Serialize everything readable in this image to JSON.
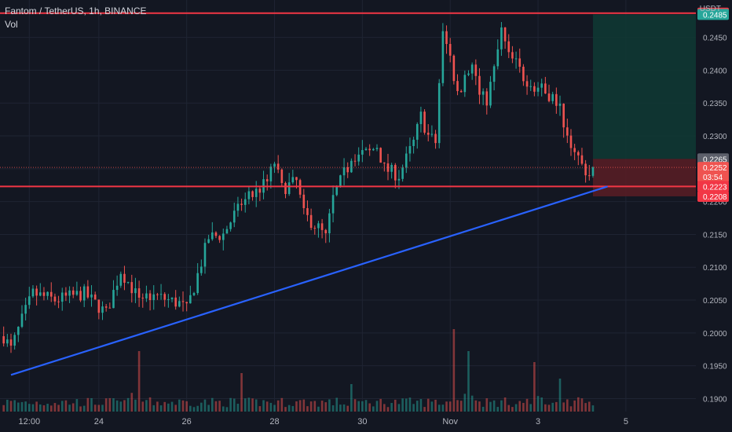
{
  "header": {
    "title": "Fantom / TetherUS, 1h, BINANCE",
    "volume_label": "Vol",
    "currency": "USDT"
  },
  "colors": {
    "background": "#131722",
    "grid": "#1f2433",
    "up": "#26a69a",
    "down": "#ef5350",
    "resistance_line": "#f23645",
    "trendline": "#2962ff",
    "target_zone": "#0f3a34",
    "stop_zone": "#5a1d24",
    "axis_text": "#b2b5be"
  },
  "chart_data": {
    "type": "candlestick",
    "symbol": "Fantom / TetherUS",
    "interval": "1h",
    "exchange": "BINANCE",
    "y_axis": {
      "ticks": [
        "0.1900",
        "0.1950",
        "0.2000",
        "0.2050",
        "0.2100",
        "0.2150",
        "0.2200",
        "0.2250",
        "0.2300",
        "0.2350",
        "0.2400",
        "0.2450"
      ],
      "range": [
        0.1885,
        0.2495
      ]
    },
    "x_axis": {
      "ticks": [
        "12:00",
        "24",
        "26",
        "28",
        "30",
        "Nov",
        "3",
        "5"
      ],
      "tick_time": [
        5,
        24,
        48,
        72,
        96,
        120,
        144,
        168
      ]
    },
    "price_labels": {
      "resistance": "0.2487",
      "target": "0.2485",
      "last_close": "0.2265",
      "current": "0.2252",
      "countdown": "03:54",
      "support": "0.2223",
      "stop": "0.2208"
    },
    "key_points": [
      [
        -2,
        0.1995
      ],
      [
        0,
        0.1975
      ],
      [
        3,
        0.202
      ],
      [
        6,
        0.206
      ],
      [
        12,
        0.205
      ],
      [
        20,
        0.206
      ],
      [
        26,
        0.203
      ],
      [
        30,
        0.2095
      ],
      [
        34,
        0.206
      ],
      [
        40,
        0.2055
      ],
      [
        46,
        0.2045
      ],
      [
        48,
        0.2035
      ],
      [
        50,
        0.207
      ],
      [
        54,
        0.2145
      ],
      [
        58,
        0.215
      ],
      [
        62,
        0.219
      ],
      [
        66,
        0.221
      ],
      [
        70,
        0.223
      ],
      [
        72,
        0.226
      ],
      [
        74,
        0.222
      ],
      [
        78,
        0.223
      ],
      [
        80,
        0.218
      ],
      [
        84,
        0.216
      ],
      [
        86,
        0.2145
      ],
      [
        88,
        0.2205
      ],
      [
        92,
        0.2255
      ],
      [
        94,
        0.227
      ],
      [
        98,
        0.2275
      ],
      [
        100,
        0.2285
      ],
      [
        102,
        0.225
      ],
      [
        106,
        0.224
      ],
      [
        110,
        0.229
      ],
      [
        112,
        0.233
      ],
      [
        114,
        0.23
      ],
      [
        116,
        0.229
      ],
      [
        117,
        0.238
      ],
      [
        118,
        0.2455
      ],
      [
        120,
        0.242
      ],
      [
        122,
        0.236
      ],
      [
        124,
        0.239
      ],
      [
        126,
        0.241
      ],
      [
        128,
        0.236
      ],
      [
        130,
        0.2355
      ],
      [
        132,
        0.24
      ],
      [
        134,
        0.246
      ],
      [
        136,
        0.242
      ],
      [
        138,
        0.241
      ],
      [
        140,
        0.239
      ],
      [
        142,
        0.238
      ],
      [
        145,
        0.237
      ],
      [
        148,
        0.236
      ],
      [
        150,
        0.234
      ],
      [
        152,
        0.23
      ],
      [
        154,
        0.228
      ],
      [
        156,
        0.2255
      ],
      [
        158,
        0.224
      ],
      [
        159,
        0.2252
      ]
    ],
    "volume_peaks": [
      [
        35,
        0.55
      ],
      [
        63,
        0.35
      ],
      [
        93,
        0.25
      ],
      [
        121,
        0.75
      ],
      [
        125,
        0.55
      ],
      [
        143,
        0.45
      ],
      [
        150,
        0.3
      ]
    ],
    "horizontal_lines": [
      {
        "price": 0.2487,
        "name": "resistance"
      },
      {
        "price": 0.2223,
        "name": "support"
      }
    ],
    "trendline": {
      "from": [
        0,
        0.1936
      ],
      "to": [
        163,
        0.2223
      ]
    },
    "position": {
      "type": "long",
      "entry": 0.2265,
      "target": 0.2485,
      "stop": 0.2208,
      "start_time": 159,
      "end_time": 188
    }
  }
}
